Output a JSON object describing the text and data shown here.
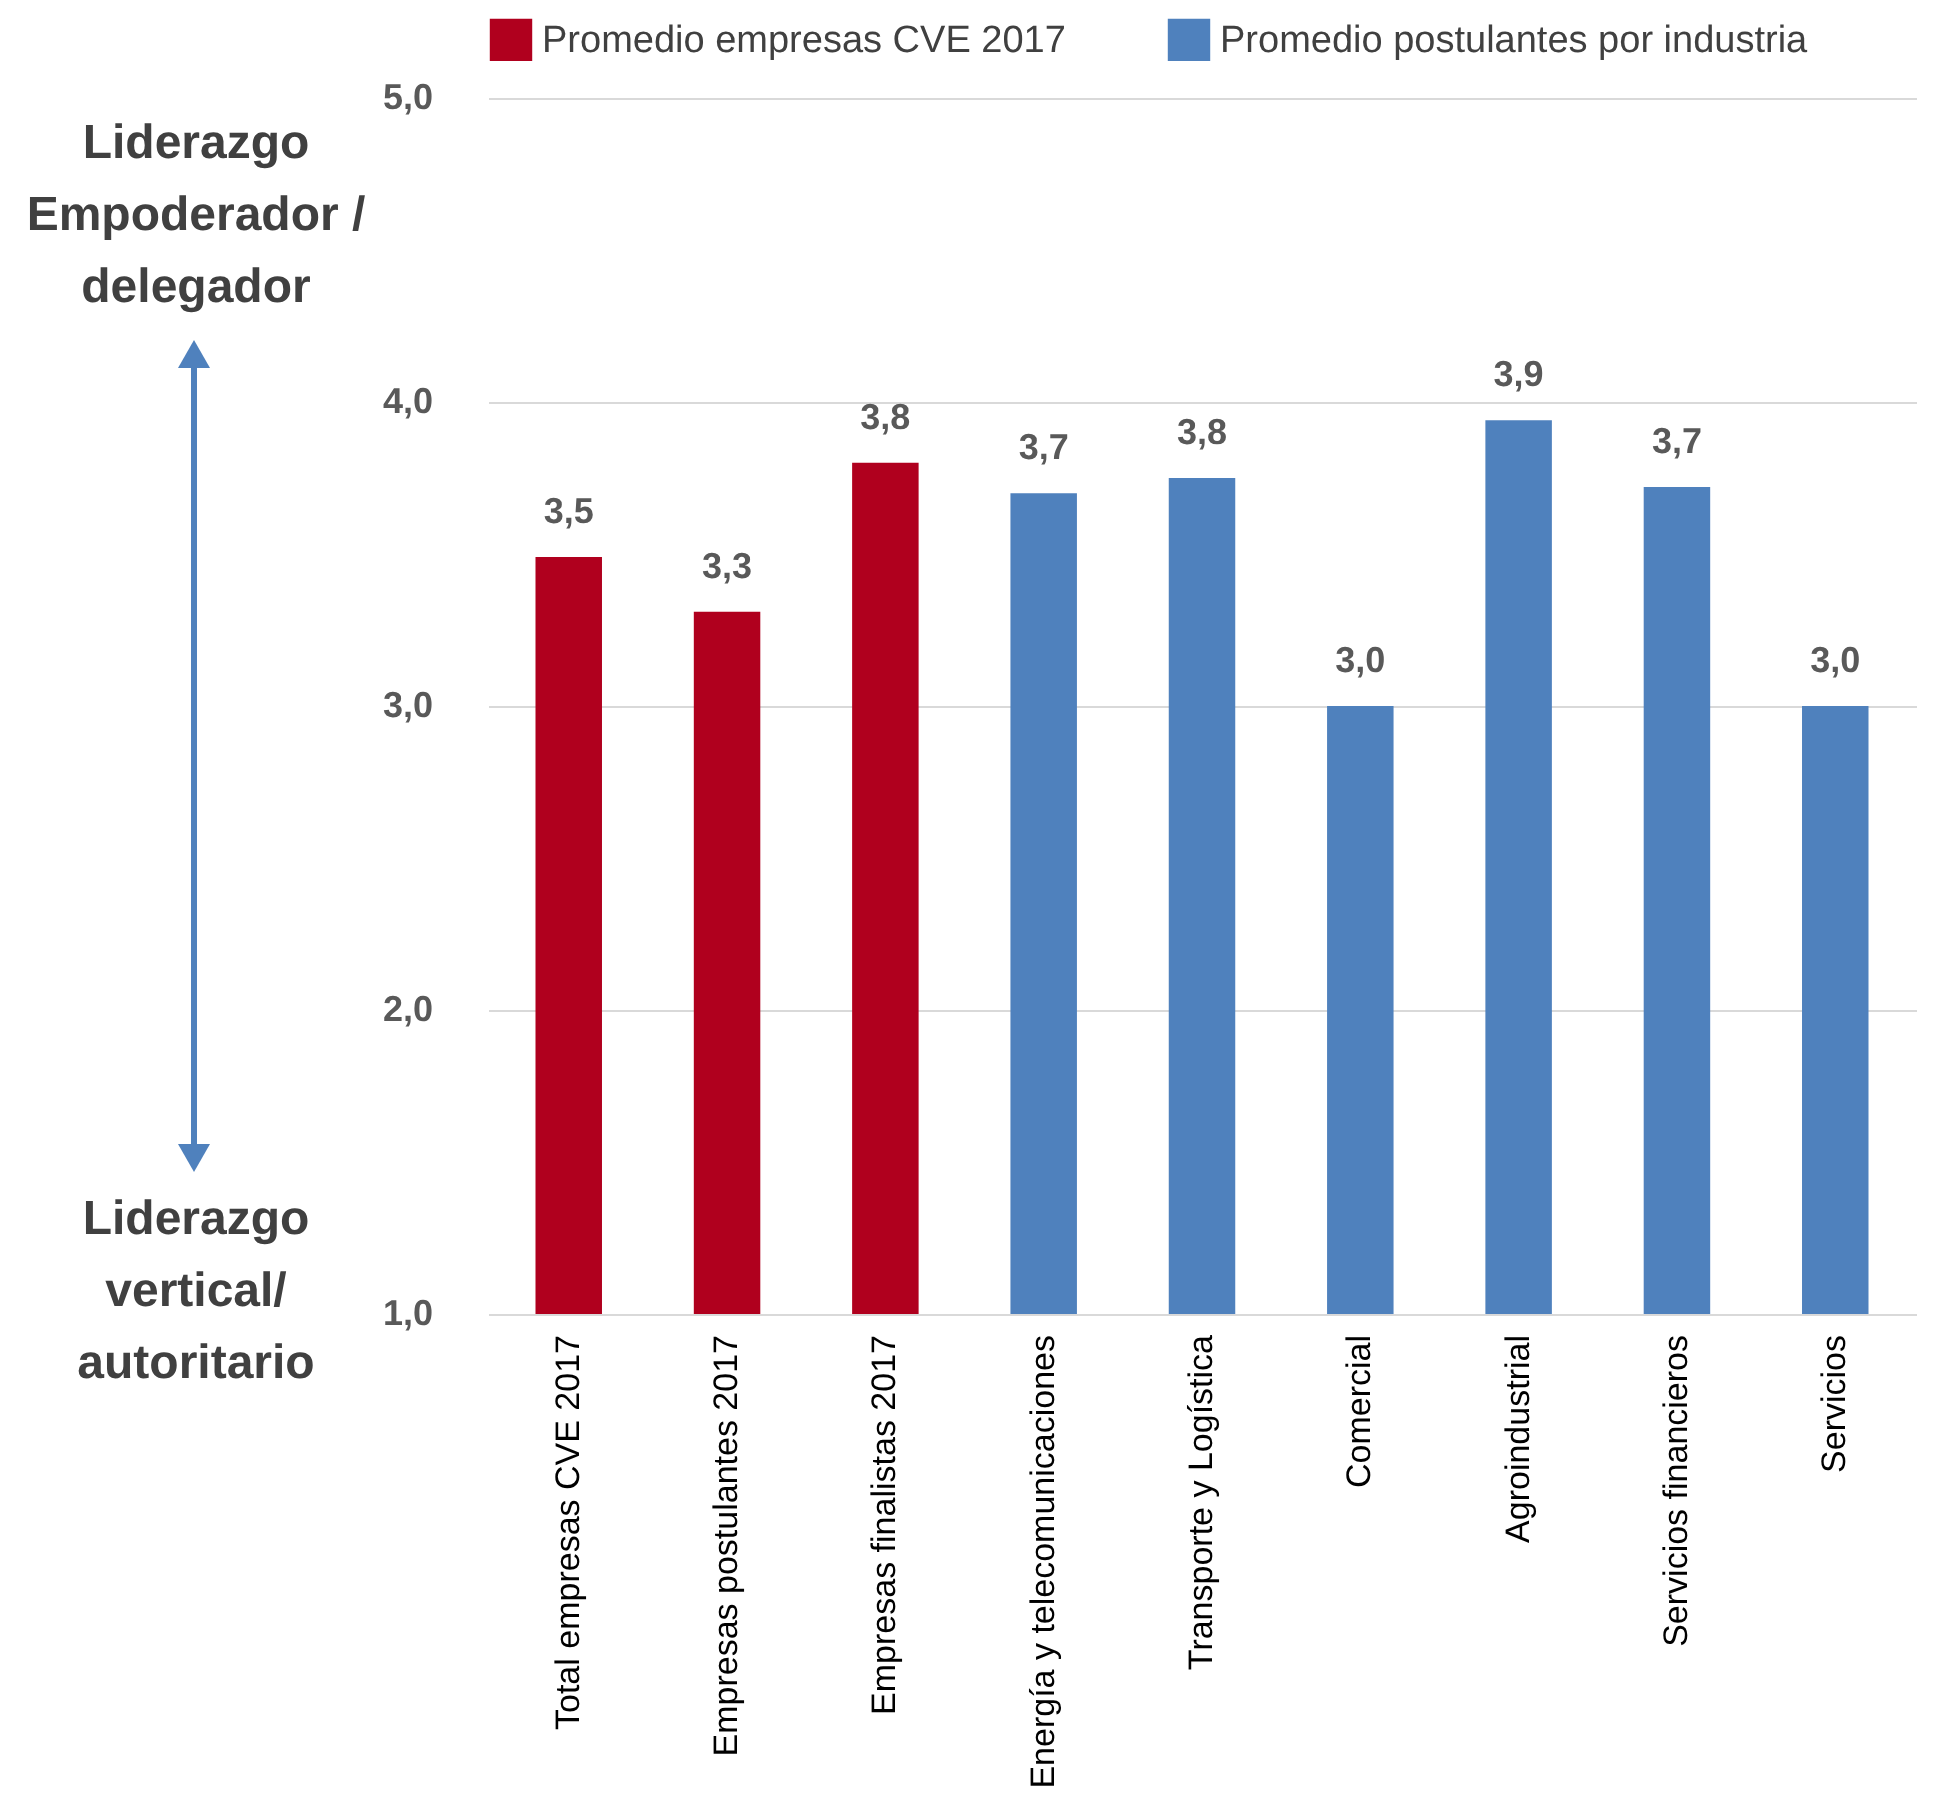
{
  "chart_data": {
    "type": "bar",
    "categories": [
      "Total empresas CVE 2017",
      "Empresas postulantes 2017",
      "Empresas finalistas 2017",
      "Energía y telecomunicaciones",
      "Transporte y Logística",
      "Comercial",
      "Agroindustrial",
      "Servicios financieros",
      "Servicios"
    ],
    "series": [
      {
        "name": "Promedio empresas CVE 2017",
        "color": "#b0001e",
        "values": [
          3.49,
          3.31,
          3.8,
          null,
          null,
          null,
          null,
          null,
          null
        ],
        "value_labels": [
          "3,5",
          "3,3",
          "3,8",
          null,
          null,
          null,
          null,
          null,
          null
        ]
      },
      {
        "name": "Promedio postulantes por industria",
        "color": "#4f81bd",
        "values": [
          null,
          null,
          null,
          3.7,
          3.75,
          3.0,
          3.94,
          3.72,
          3.0
        ],
        "value_labels": [
          null,
          null,
          null,
          "3,7",
          "3,8",
          "3,0",
          "3,9",
          "3,7",
          "3,0"
        ]
      }
    ],
    "ylim": [
      1,
      5
    ],
    "yticks": [
      {
        "value": 1,
        "label": "1,0"
      },
      {
        "value": 2,
        "label": "2,0"
      },
      {
        "value": 3,
        "label": "3,0"
      },
      {
        "value": 4,
        "label": "4,0"
      },
      {
        "value": 5,
        "label": "5,0"
      }
    ],
    "grid": "y",
    "legend": "top",
    "annotations": [
      "Liderazgo Empoderador / delegador",
      "Liderazgo vertical/ autoritario"
    ]
  }
}
